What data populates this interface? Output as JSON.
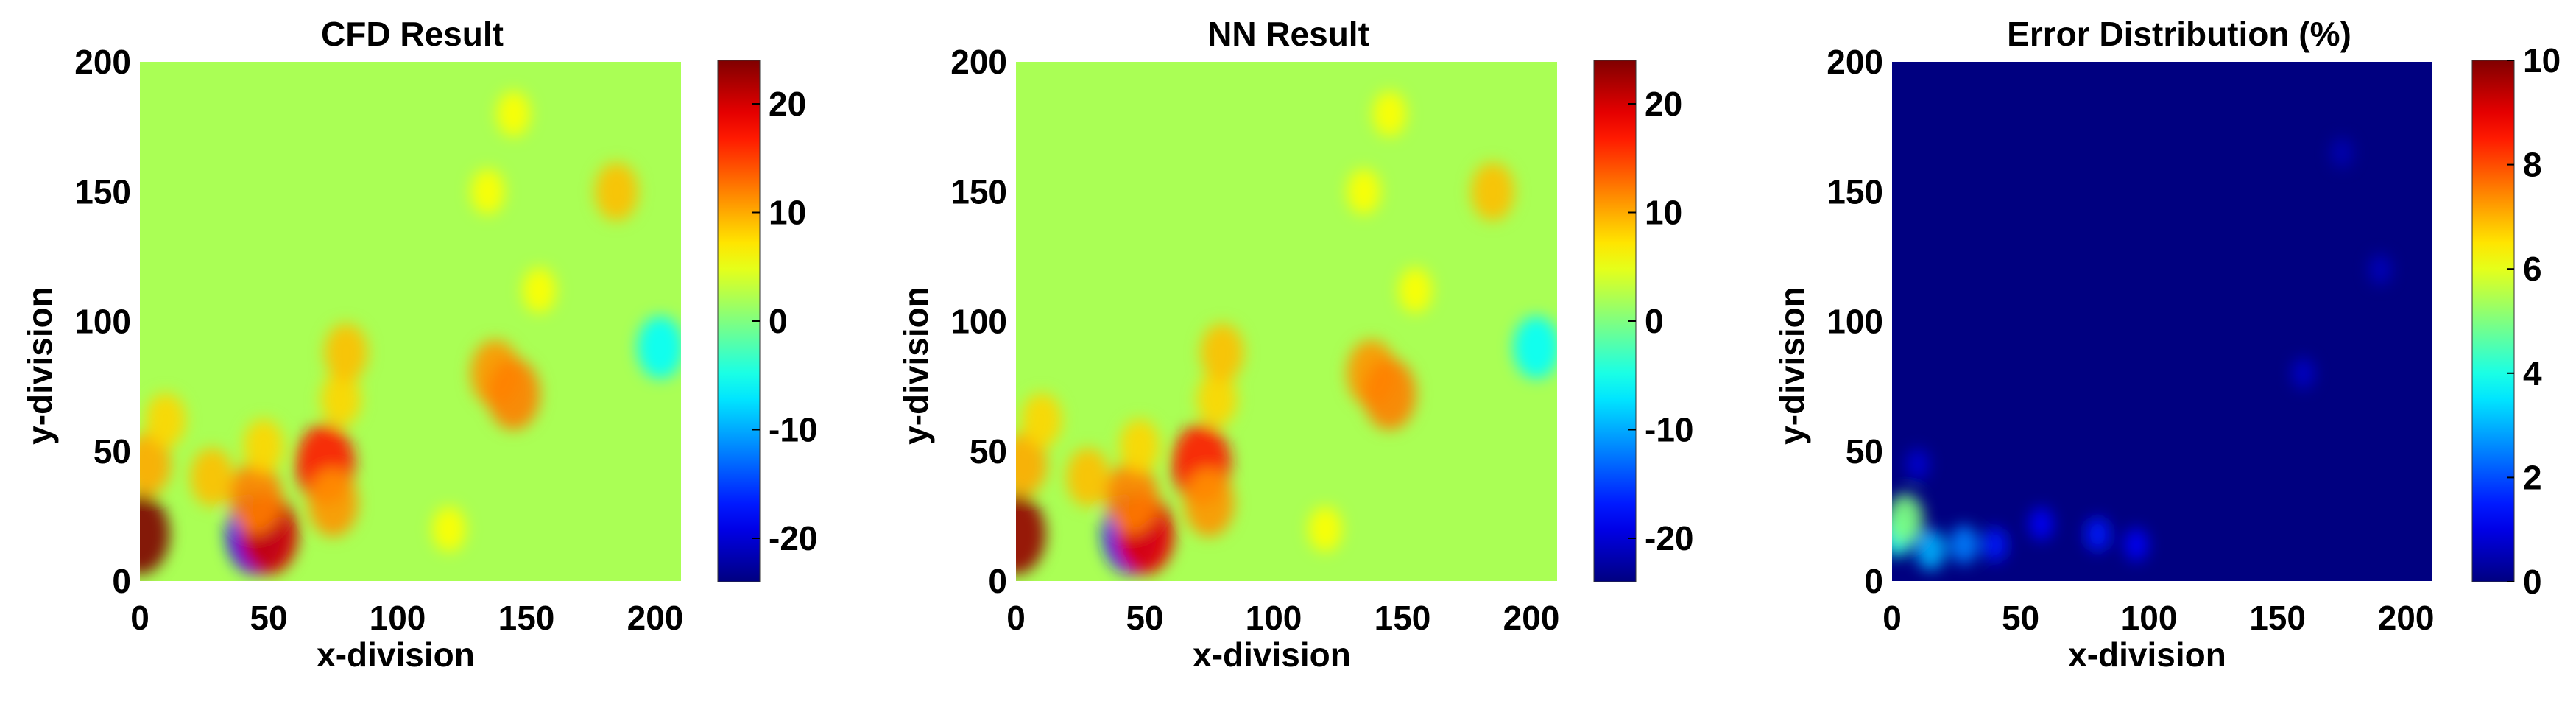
{
  "figure": {
    "panels": [
      {
        "title": "CFD Result",
        "xlabel": "x-division",
        "ylabel": "y-division"
      },
      {
        "title": "NN Result",
        "xlabel": "x-division",
        "ylabel": "y-division"
      },
      {
        "title": "Error Distribution (%)",
        "xlabel": "x-division",
        "ylabel": "y-division"
      }
    ]
  },
  "chart_data": [
    {
      "type": "heatmap",
      "title": "CFD Result",
      "xlabel": "x-division",
      "ylabel": "y-division",
      "xlim": [
        0,
        210
      ],
      "ylim": [
        0,
        200
      ],
      "xticks": [
        0,
        50,
        100,
        150,
        200
      ],
      "yticks": [
        0,
        50,
        100,
        150,
        200
      ],
      "colormap": "jet",
      "background_value": 2,
      "colorbar": {
        "range": [
          -24,
          24
        ],
        "ticks": [
          20,
          10,
          0,
          -10,
          -20
        ]
      },
      "features": [
        {
          "x": 0,
          "y": 18,
          "value": 24
        },
        {
          "x": 3,
          "y": 45,
          "value": 10
        },
        {
          "x": 10,
          "y": 62,
          "value": 8
        },
        {
          "x": 28,
          "y": 40,
          "value": 9
        },
        {
          "x": 45,
          "y": 18,
          "value": -18
        },
        {
          "x": 50,
          "y": 18,
          "value": 20
        },
        {
          "x": 45,
          "y": 32,
          "value": 12
        },
        {
          "x": 48,
          "y": 52,
          "value": 8
        },
        {
          "x": 72,
          "y": 45,
          "value": 17
        },
        {
          "x": 75,
          "y": 30,
          "value": 11
        },
        {
          "x": 78,
          "y": 70,
          "value": 8
        },
        {
          "x": 80,
          "y": 88,
          "value": 9
        },
        {
          "x": 138,
          "y": 80,
          "value": 11
        },
        {
          "x": 145,
          "y": 72,
          "value": 12
        },
        {
          "x": 155,
          "y": 112,
          "value": 6
        },
        {
          "x": 185,
          "y": 150,
          "value": 9
        },
        {
          "x": 145,
          "y": 180,
          "value": 6
        },
        {
          "x": 135,
          "y": 150,
          "value": 6
        },
        {
          "x": 202,
          "y": 90,
          "value": -6
        },
        {
          "x": 120,
          "y": 20,
          "value": 6
        }
      ]
    },
    {
      "type": "heatmap",
      "title": "NN Result",
      "xlabel": "x-division",
      "ylabel": "y-division",
      "xlim": [
        0,
        210
      ],
      "ylim": [
        0,
        200
      ],
      "xticks": [
        0,
        50,
        100,
        150,
        200
      ],
      "yticks": [
        0,
        50,
        100,
        150,
        200
      ],
      "colormap": "jet",
      "background_value": 2,
      "colorbar": {
        "range": [
          -24,
          24
        ],
        "ticks": [
          20,
          10,
          0,
          -10,
          -20
        ]
      },
      "features": [
        {
          "x": 0,
          "y": 18,
          "value": 23
        },
        {
          "x": 3,
          "y": 45,
          "value": 10
        },
        {
          "x": 10,
          "y": 62,
          "value": 8
        },
        {
          "x": 28,
          "y": 40,
          "value": 9
        },
        {
          "x": 45,
          "y": 18,
          "value": -17
        },
        {
          "x": 50,
          "y": 18,
          "value": 19
        },
        {
          "x": 45,
          "y": 32,
          "value": 12
        },
        {
          "x": 48,
          "y": 52,
          "value": 8
        },
        {
          "x": 72,
          "y": 45,
          "value": 17
        },
        {
          "x": 75,
          "y": 30,
          "value": 11
        },
        {
          "x": 78,
          "y": 70,
          "value": 8
        },
        {
          "x": 80,
          "y": 88,
          "value": 9
        },
        {
          "x": 138,
          "y": 80,
          "value": 11
        },
        {
          "x": 145,
          "y": 72,
          "value": 12
        },
        {
          "x": 155,
          "y": 112,
          "value": 6
        },
        {
          "x": 185,
          "y": 150,
          "value": 9
        },
        {
          "x": 145,
          "y": 180,
          "value": 6
        },
        {
          "x": 135,
          "y": 150,
          "value": 6
        },
        {
          "x": 202,
          "y": 90,
          "value": -6
        },
        {
          "x": 120,
          "y": 20,
          "value": 6
        }
      ]
    },
    {
      "type": "heatmap",
      "title": "Error Distribution (%)",
      "xlabel": "x-division",
      "ylabel": "y-division",
      "xlim": [
        0,
        210
      ],
      "ylim": [
        0,
        200
      ],
      "xticks": [
        0,
        50,
        100,
        150,
        200
      ],
      "yticks": [
        0,
        50,
        100,
        150,
        200
      ],
      "colormap": "jet",
      "background_value": 0,
      "colorbar": {
        "range": [
          0,
          10
        ],
        "ticks": [
          10,
          8,
          6,
          4,
          2,
          0
        ]
      },
      "features": [
        {
          "x": 2,
          "y": 18,
          "value": 4
        },
        {
          "x": 5,
          "y": 24,
          "value": 5
        },
        {
          "x": 15,
          "y": 12,
          "value": 3
        },
        {
          "x": 28,
          "y": 14,
          "value": 2.5
        },
        {
          "x": 40,
          "y": 14,
          "value": 1.5
        },
        {
          "x": 58,
          "y": 22,
          "value": 1.2
        },
        {
          "x": 80,
          "y": 18,
          "value": 1.5
        },
        {
          "x": 95,
          "y": 14,
          "value": 1.2
        },
        {
          "x": 10,
          "y": 45,
          "value": 0.8
        },
        {
          "x": 160,
          "y": 80,
          "value": 0.7
        },
        {
          "x": 190,
          "y": 120,
          "value": 0.6
        },
        {
          "x": 175,
          "y": 165,
          "value": 0.5
        }
      ]
    }
  ]
}
